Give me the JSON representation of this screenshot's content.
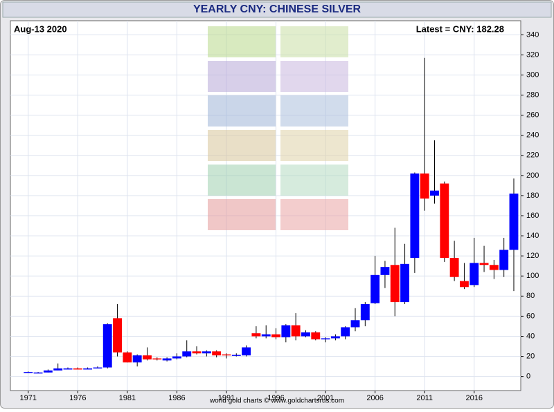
{
  "chart_data": {
    "type": "candlestick",
    "title": "YEARLY CNY: CHINESE SILVER",
    "date_label": "Aug-13  2020",
    "latest_label": "Latest = CNY: 182.28",
    "footer": "world gold charts © www.goldchartsrus.com",
    "x": [
      1971,
      1972,
      1973,
      1974,
      1975,
      1976,
      1977,
      1978,
      1979,
      1980,
      1981,
      1982,
      1983,
      1984,
      1985,
      1986,
      1987,
      1988,
      1989,
      1990,
      1991,
      1992,
      1993,
      1994,
      1995,
      1996,
      1997,
      1998,
      1999,
      2000,
      2001,
      2002,
      2003,
      2004,
      2005,
      2006,
      2007,
      2008,
      2009,
      2010,
      2011,
      2012,
      2013,
      2014,
      2015,
      2016,
      2017,
      2018,
      2019,
      2020
    ],
    "open": [
      4,
      4,
      4,
      6,
      8,
      8,
      8,
      8,
      9,
      58,
      24,
      14,
      21,
      18,
      16,
      18,
      20,
      25,
      23,
      25,
      22,
      21,
      21,
      43,
      40,
      42,
      39,
      51,
      40,
      44,
      37,
      38,
      40,
      49,
      56,
      73,
      101,
      111,
      74,
      118,
      202,
      180,
      192,
      118,
      95,
      91,
      113,
      111,
      106,
      126
    ],
    "high": [
      5,
      4.5,
      7,
      13,
      9,
      9,
      9,
      10,
      53,
      72,
      25,
      22,
      29,
      19,
      19,
      23,
      36,
      30,
      26,
      26,
      23,
      23,
      31,
      50,
      51,
      48,
      52,
      63,
      46,
      45,
      39,
      42,
      50,
      68,
      74,
      120,
      115,
      148,
      132,
      203,
      317,
      235,
      194,
      135,
      113,
      138,
      130,
      116,
      138,
      197
    ],
    "low": [
      3.5,
      3.5,
      4,
      6,
      7,
      7,
      7.5,
      8,
      8,
      20,
      14,
      10,
      16,
      16,
      15,
      17,
      19,
      22,
      20,
      19,
      18,
      20,
      20,
      38,
      38,
      37,
      34,
      36,
      39,
      36,
      34,
      36,
      37,
      45,
      50,
      72,
      88,
      60,
      72,
      103,
      165,
      172,
      114,
      95,
      87,
      89,
      104,
      97,
      99,
      85
    ],
    "close": [
      4.5,
      4,
      6,
      8,
      8,
      7.5,
      8,
      9,
      52,
      24,
      14,
      21,
      17,
      17,
      18,
      20,
      25,
      23,
      25,
      21,
      21,
      21.5,
      29,
      40,
      42,
      39,
      51,
      40,
      44,
      37,
      38,
      40,
      49,
      56,
      72,
      101,
      109,
      74,
      112,
      202,
      177,
      185,
      118,
      99,
      89,
      113,
      111,
      106,
      126,
      182
    ],
    "up_color": "#0000ff",
    "down_color": "#ff0000",
    "xlim": [
      1969.2,
      2020.7
    ],
    "xticks": [
      1971,
      1976,
      1981,
      1986,
      1991,
      1996,
      2001,
      2006,
      2011,
      2016
    ],
    "ylim": [
      -14,
      354
    ],
    "yticks": [
      0,
      20,
      40,
      60,
      80,
      100,
      120,
      140,
      160,
      180,
      200,
      220,
      240,
      260,
      280,
      300,
      320,
      340
    ],
    "grid": true
  }
}
